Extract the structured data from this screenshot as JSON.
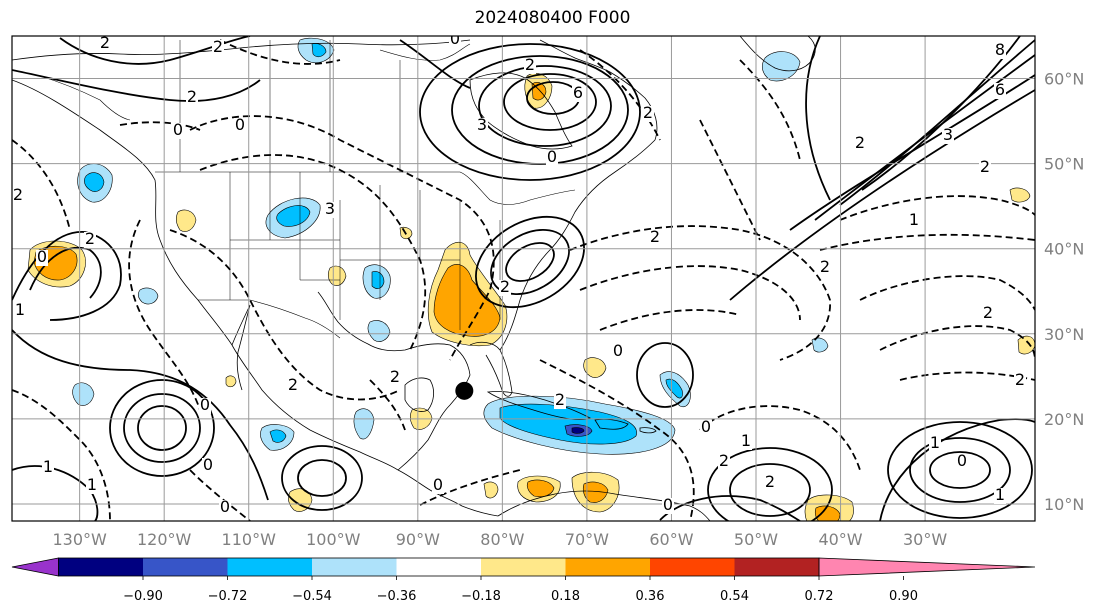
{
  "title": "2024080400 F000",
  "colors": {
    "contour": "#000000",
    "grid": "#9a9a9a",
    "axis_label": "#808080",
    "marker": "#000000"
  },
  "map": {
    "lon_range": [
      -138,
      -17
    ],
    "lat_range": [
      8,
      65
    ],
    "lat_labels": [
      "10°N",
      "20°N",
      "30°N",
      "40°N",
      "50°N",
      "60°N"
    ],
    "lon_labels": [
      "130°W",
      "120°W",
      "110°W",
      "100°W",
      "90°W",
      "80°W",
      "70°W",
      "60°W",
      "50°W",
      "40°W",
      "30°W"
    ],
    "contour_labels": [
      "2",
      "8",
      "0",
      "2",
      "2",
      "6",
      "3",
      "0",
      "2",
      "0",
      "0",
      "2",
      "2",
      "6",
      "3",
      "2",
      "1",
      "2",
      "0",
      "3",
      "2",
      "2",
      "0",
      "2",
      "1",
      "2",
      "2",
      "0",
      "1",
      "1",
      "2",
      "0",
      "0",
      "0",
      "2",
      "1",
      "0",
      "2",
      "1",
      "0",
      "2",
      "2",
      "1",
      "0",
      "2"
    ],
    "storm_marker": {
      "lon": -84.5,
      "lat": 23.3
    }
  },
  "colorbar": {
    "colors": [
      "#9933cc",
      "#000080",
      "#3755c8",
      "#00bfff",
      "#aee2fa",
      "#ffffff",
      "#ffe88a",
      "#ffa500",
      "#ff4500",
      "#b22222",
      "#ff85b0"
    ],
    "tick_labels": [
      "−0.90",
      "−0.72",
      "−0.54",
      "−0.36",
      "−0.18",
      "0.18",
      "0.36",
      "0.54",
      "0.72",
      "0.90"
    ]
  }
}
